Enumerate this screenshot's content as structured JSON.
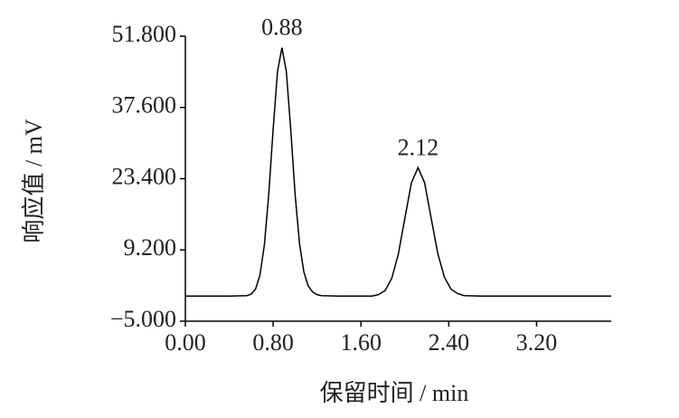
{
  "chart_data": {
    "type": "line",
    "x_label": "保留时间 / min",
    "y_label": "响应值 / mV",
    "x": [
      0,
      0.4,
      0.56,
      0.6,
      0.64,
      0.68,
      0.72,
      0.76,
      0.8,
      0.84,
      0.88,
      0.92,
      0.96,
      1.0,
      1.04,
      1.08,
      1.12,
      1.16,
      1.2,
      1.24,
      1.4,
      1.7,
      1.76,
      1.82,
      1.88,
      1.94,
      2.0,
      2.06,
      2.12,
      2.18,
      2.24,
      2.3,
      2.36,
      2.42,
      2.48,
      2.54,
      2.7,
      3.88
    ],
    "values": [
      0,
      0,
      0.1,
      0.4,
      1.4,
      4.2,
      10.2,
      20.3,
      33.3,
      44.8,
      49.5,
      44.8,
      33.3,
      20.3,
      10.5,
      4.8,
      2.0,
      0.8,
      0.3,
      0.1,
      0,
      0,
      0.3,
      1.1,
      3.5,
      8.3,
      15.5,
      22.6,
      25.6,
      22.6,
      15.5,
      8.5,
      3.8,
      1.4,
      0.5,
      0.1,
      0,
      0
    ],
    "color": "#000000",
    "annotations": [
      {
        "text": "0.88",
        "x": 0.88
      },
      {
        "text": "2.12",
        "x": 2.12
      }
    ],
    "xlim": [
      0,
      3.88
    ],
    "ylim": [
      -5,
      51.8
    ],
    "xticks": [
      {
        "value": 0,
        "label": "0.00"
      },
      {
        "value": 0.8,
        "label": "0.80"
      },
      {
        "value": 1.6,
        "label": "1.60"
      },
      {
        "value": 2.4,
        "label": "2.40"
      },
      {
        "value": 3.2,
        "label": "3.20"
      }
    ],
    "yticks": [
      {
        "value": -5,
        "label": "−5.000"
      },
      {
        "value": 9.2,
        "label": "9.200"
      },
      {
        "value": 23.4,
        "label": "23.400"
      },
      {
        "value": 37.6,
        "label": "37.600"
      },
      {
        "value": 51.8,
        "label": "51.800"
      }
    ],
    "grid": false
  }
}
